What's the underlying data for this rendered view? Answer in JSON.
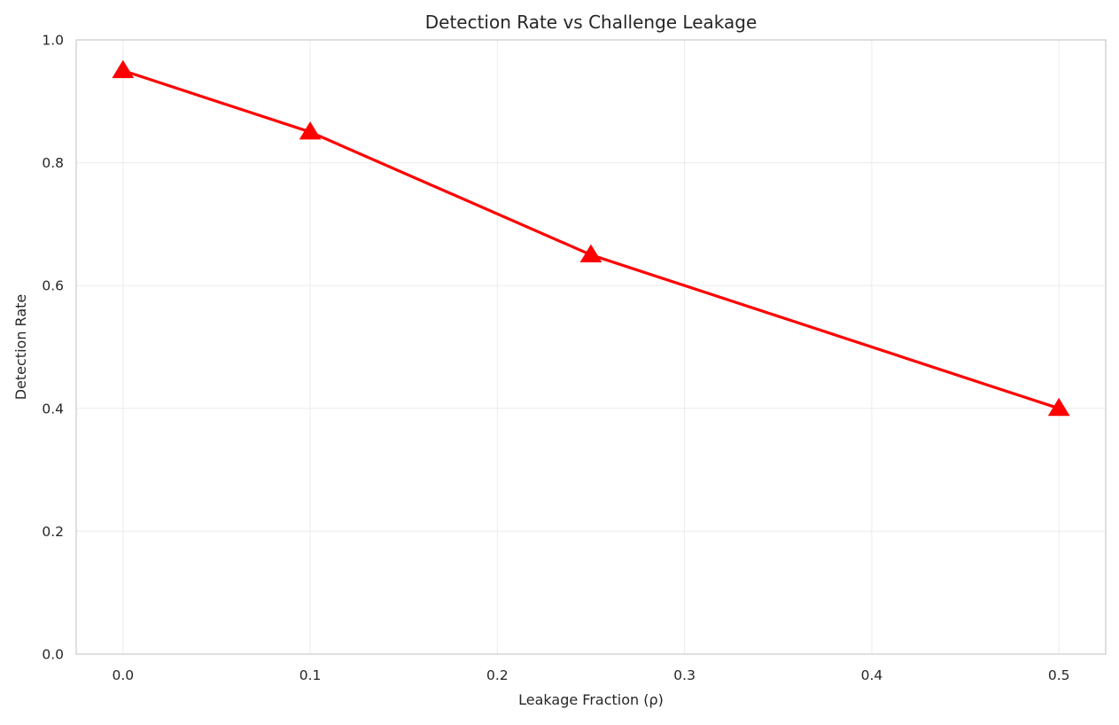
{
  "chart_data": {
    "type": "line",
    "title": "Detection Rate vs Challenge Leakage",
    "xlabel": "Leakage Fraction (ρ)",
    "ylabel": "Detection Rate",
    "xlim": [
      -0.025,
      0.525
    ],
    "ylim": [
      0.0,
      1.0
    ],
    "x_ticks": [
      0.0,
      0.1,
      0.2,
      0.3,
      0.4,
      0.5
    ],
    "x_tick_labels": [
      "0.0",
      "0.1",
      "0.2",
      "0.3",
      "0.4",
      "0.5"
    ],
    "y_ticks": [
      0.0,
      0.2,
      0.4,
      0.6,
      0.8,
      1.0
    ],
    "y_tick_labels": [
      "0.0",
      "0.2",
      "0.4",
      "0.6",
      "0.8",
      "1.0"
    ],
    "grid": true,
    "legend": "none",
    "series": [
      {
        "x": [
          0.0,
          0.1,
          0.25,
          0.5
        ],
        "values": [
          0.95,
          0.85,
          0.65,
          0.4
        ],
        "color": "#ff0000",
        "marker": "triangle-up"
      }
    ]
  },
  "colors": {
    "grid": "#ebebeb",
    "axes_border": "#cccccc",
    "text": "#262626"
  }
}
